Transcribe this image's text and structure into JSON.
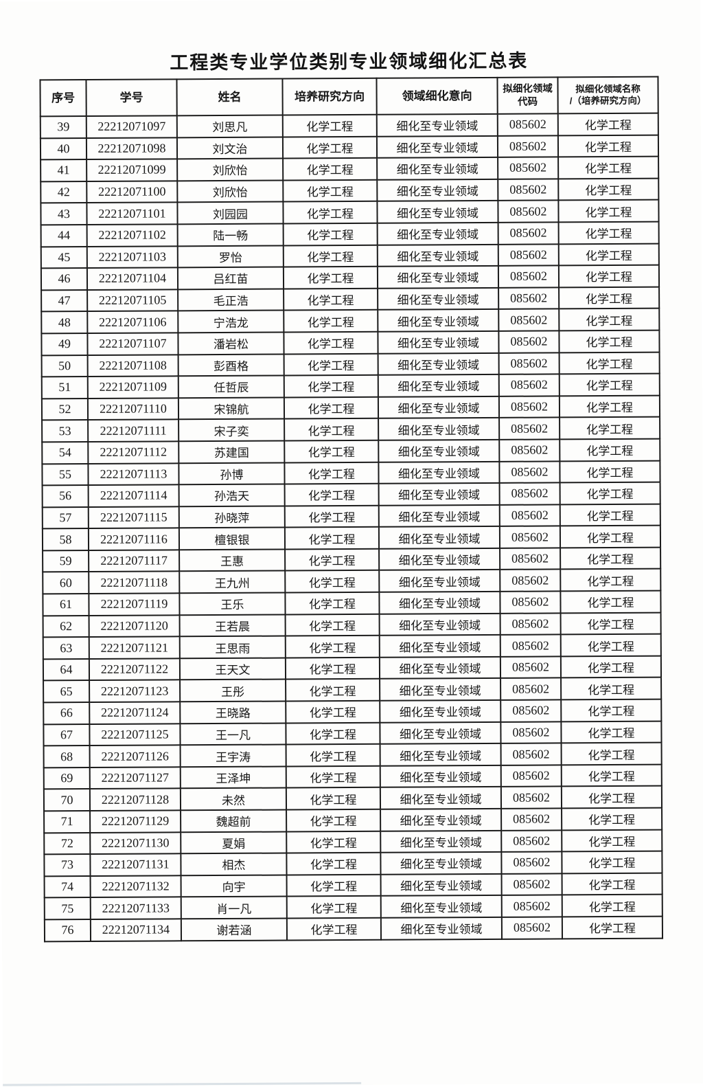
{
  "title": "工程类专业学位类别专业领域细化汇总表",
  "colors": {
    "ink": "#171717",
    "border": "#1b1b1b",
    "paper": "#fdfdfc"
  },
  "table": {
    "headers": [
      "序号",
      "学号",
      "姓名",
      "培养研究方向",
      "领域细化意向",
      "拟细化领域\n代码",
      "拟细化领域名称\n/（培养研究方向）"
    ],
    "rows": [
      [
        "39",
        "22212071097",
        "刘思凡",
        "化学工程",
        "细化至专业领域",
        "085602",
        "化学工程"
      ],
      [
        "40",
        "22212071098",
        "刘文治",
        "化学工程",
        "细化至专业领域",
        "085602",
        "化学工程"
      ],
      [
        "41",
        "22212071099",
        "刘欣怡",
        "化学工程",
        "细化至专业领域",
        "085602",
        "化学工程"
      ],
      [
        "42",
        "22212071100",
        "刘欣怡",
        "化学工程",
        "细化至专业领域",
        "085602",
        "化学工程"
      ],
      [
        "43",
        "22212071101",
        "刘园园",
        "化学工程",
        "细化至专业领域",
        "085602",
        "化学工程"
      ],
      [
        "44",
        "22212071102",
        "陆一畅",
        "化学工程",
        "细化至专业领域",
        "085602",
        "化学工程"
      ],
      [
        "45",
        "22212071103",
        "罗怡",
        "化学工程",
        "细化至专业领域",
        "085602",
        "化学工程"
      ],
      [
        "46",
        "22212071104",
        "吕红苗",
        "化学工程",
        "细化至专业领域",
        "085602",
        "化学工程"
      ],
      [
        "47",
        "22212071105",
        "毛正浩",
        "化学工程",
        "细化至专业领域",
        "085602",
        "化学工程"
      ],
      [
        "48",
        "22212071106",
        "宁浩龙",
        "化学工程",
        "细化至专业领域",
        "085602",
        "化学工程"
      ],
      [
        "49",
        "22212071107",
        "潘岩松",
        "化学工程",
        "细化至专业领域",
        "085602",
        "化学工程"
      ],
      [
        "50",
        "22212071108",
        "彭酉格",
        "化学工程",
        "细化至专业领域",
        "085602",
        "化学工程"
      ],
      [
        "51",
        "22212071109",
        "任哲辰",
        "化学工程",
        "细化至专业领域",
        "085602",
        "化学工程"
      ],
      [
        "52",
        "22212071110",
        "宋锦航",
        "化学工程",
        "细化至专业领域",
        "085602",
        "化学工程"
      ],
      [
        "53",
        "22212071111",
        "宋子奕",
        "化学工程",
        "细化至专业领域",
        "085602",
        "化学工程"
      ],
      [
        "54",
        "22212071112",
        "苏建国",
        "化学工程",
        "细化至专业领域",
        "085602",
        "化学工程"
      ],
      [
        "55",
        "22212071113",
        "孙博",
        "化学工程",
        "细化至专业领域",
        "085602",
        "化学工程"
      ],
      [
        "56",
        "22212071114",
        "孙浩天",
        "化学工程",
        "细化至专业领域",
        "085602",
        "化学工程"
      ],
      [
        "57",
        "22212071115",
        "孙晓萍",
        "化学工程",
        "细化至专业领域",
        "085602",
        "化学工程"
      ],
      [
        "58",
        "22212071116",
        "檀银银",
        "化学工程",
        "细化至专业领域",
        "085602",
        "化学工程"
      ],
      [
        "59",
        "22212071117",
        "王惠",
        "化学工程",
        "细化至专业领域",
        "085602",
        "化学工程"
      ],
      [
        "60",
        "22212071118",
        "王九州",
        "化学工程",
        "细化至专业领域",
        "085602",
        "化学工程"
      ],
      [
        "61",
        "22212071119",
        "王乐",
        "化学工程",
        "细化至专业领域",
        "085602",
        "化学工程"
      ],
      [
        "62",
        "22212071120",
        "王若晨",
        "化学工程",
        "细化至专业领域",
        "085602",
        "化学工程"
      ],
      [
        "63",
        "22212071121",
        "王思雨",
        "化学工程",
        "细化至专业领域",
        "085602",
        "化学工程"
      ],
      [
        "64",
        "22212071122",
        "王天文",
        "化学工程",
        "细化至专业领域",
        "085602",
        "化学工程"
      ],
      [
        "65",
        "22212071123",
        "王彤",
        "化学工程",
        "细化至专业领域",
        "085602",
        "化学工程"
      ],
      [
        "66",
        "22212071124",
        "王晓路",
        "化学工程",
        "细化至专业领域",
        "085602",
        "化学工程"
      ],
      [
        "67",
        "22212071125",
        "王一凡",
        "化学工程",
        "细化至专业领域",
        "085602",
        "化学工程"
      ],
      [
        "68",
        "22212071126",
        "王宇涛",
        "化学工程",
        "细化至专业领域",
        "085602",
        "化学工程"
      ],
      [
        "69",
        "22212071127",
        "王泽坤",
        "化学工程",
        "细化至专业领域",
        "085602",
        "化学工程"
      ],
      [
        "70",
        "22212071128",
        "未然",
        "化学工程",
        "细化至专业领域",
        "085602",
        "化学工程"
      ],
      [
        "71",
        "22212071129",
        "魏超前",
        "化学工程",
        "细化至专业领域",
        "085602",
        "化学工程"
      ],
      [
        "72",
        "22212071130",
        "夏娟",
        "化学工程",
        "细化至专业领域",
        "085602",
        "化学工程"
      ],
      [
        "73",
        "22212071131",
        "相杰",
        "化学工程",
        "细化至专业领域",
        "085602",
        "化学工程"
      ],
      [
        "74",
        "22212071132",
        "向宇",
        "化学工程",
        "细化至专业领域",
        "085602",
        "化学工程"
      ],
      [
        "75",
        "22212071133",
        "肖一凡",
        "化学工程",
        "细化至专业领域",
        "085602",
        "化学工程"
      ],
      [
        "76",
        "22212071134",
        "谢若涵",
        "化学工程",
        "细化至专业领域",
        "085602",
        "化学工程"
      ]
    ]
  }
}
